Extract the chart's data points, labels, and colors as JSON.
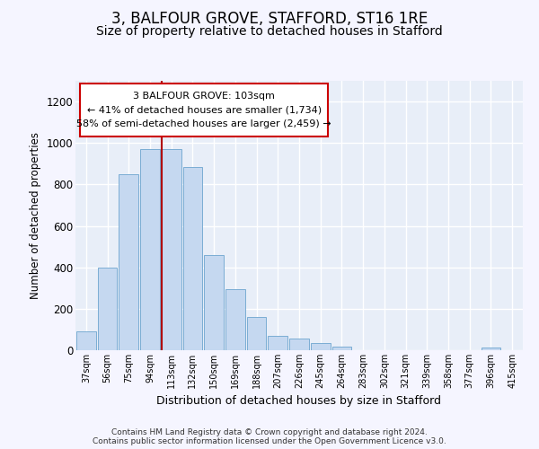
{
  "title_line1": "3, BALFOUR GROVE, STAFFORD, ST16 1RE",
  "title_line2": "Size of property relative to detached houses in Stafford",
  "xlabel": "Distribution of detached houses by size in Stafford",
  "ylabel": "Number of detached properties",
  "categories": [
    "37sqm",
    "56sqm",
    "75sqm",
    "94sqm",
    "113sqm",
    "132sqm",
    "150sqm",
    "169sqm",
    "188sqm",
    "207sqm",
    "226sqm",
    "245sqm",
    "264sqm",
    "283sqm",
    "302sqm",
    "321sqm",
    "339sqm",
    "358sqm",
    "377sqm",
    "396sqm",
    "415sqm"
  ],
  "values": [
    90,
    400,
    848,
    970,
    970,
    883,
    458,
    295,
    160,
    70,
    55,
    35,
    18,
    0,
    0,
    0,
    0,
    0,
    0,
    12,
    0
  ],
  "bar_color": "#c5d8f0",
  "bar_edge_color": "#7badd4",
  "vline_color": "#b00000",
  "property_bin_index": 4,
  "annotation_text": "3 BALFOUR GROVE: 103sqm\n← 41% of detached houses are smaller (1,734)\n58% of semi-detached houses are larger (2,459) →",
  "annotation_box_color": "#ffffff",
  "annotation_box_edge": "#cc0000",
  "ylim": [
    0,
    1300
  ],
  "yticks": [
    0,
    200,
    400,
    600,
    800,
    1000,
    1200
  ],
  "bg_color": "#e8eef8",
  "fig_color": "#f5f5ff",
  "grid_color": "#ffffff",
  "title_fontsize": 12,
  "subtitle_fontsize": 10,
  "footer": "Contains HM Land Registry data © Crown copyright and database right 2024.\nContains public sector information licensed under the Open Government Licence v3.0."
}
